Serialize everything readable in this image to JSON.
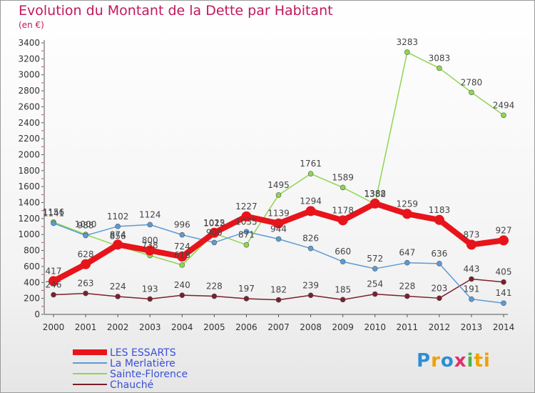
{
  "title": "Evolution du Montant de la Dette par Habitant",
  "unit": "(en €)",
  "logo": {
    "text": "Proxiti",
    "letters": [
      "P",
      "r",
      "o",
      "x",
      "i",
      "ti"
    ]
  },
  "chart_data": {
    "type": "line",
    "x": [
      "2000",
      "2001",
      "2002",
      "2003",
      "2004",
      "2005",
      "2006",
      "2007",
      "2008",
      "2009",
      "2010",
      "2011",
      "2012",
      "2013",
      "2014"
    ],
    "ylim": [
      0,
      3400
    ],
    "yticks": [
      0,
      200,
      400,
      600,
      800,
      1000,
      1200,
      1400,
      1600,
      1800,
      2000,
      2200,
      2400,
      2600,
      2800,
      3000,
      3200,
      3400
    ],
    "grid": false,
    "legend_position": "bottom-left",
    "series": [
      {
        "name": "LES ESSARTS",
        "color": "#e8141b",
        "values": [
          417,
          628,
          874,
          800,
          724,
          1022,
          1227,
          1139,
          1294,
          1178,
          1388,
          1259,
          1183,
          873,
          927
        ]
      },
      {
        "name": "La Merlatière",
        "color": "#5b9bd5",
        "values": [
          1141,
          988,
          1102,
          1124,
          996,
          900,
          1035,
          944,
          826,
          660,
          572,
          647,
          636,
          191,
          141
        ]
      },
      {
        "name": "Sainte-Florence",
        "color": "#8fd650",
        "values": [
          1156,
          1000,
          856,
          738,
          618,
          1015,
          871,
          1495,
          1761,
          1589,
          1382,
          3283,
          3083,
          2780,
          2494
        ]
      },
      {
        "name": "Chauché",
        "color": "#7b2029",
        "values": [
          246,
          263,
          224,
          193,
          240,
          228,
          197,
          182,
          239,
          185,
          254,
          228,
          203,
          443,
          405
        ]
      }
    ]
  }
}
